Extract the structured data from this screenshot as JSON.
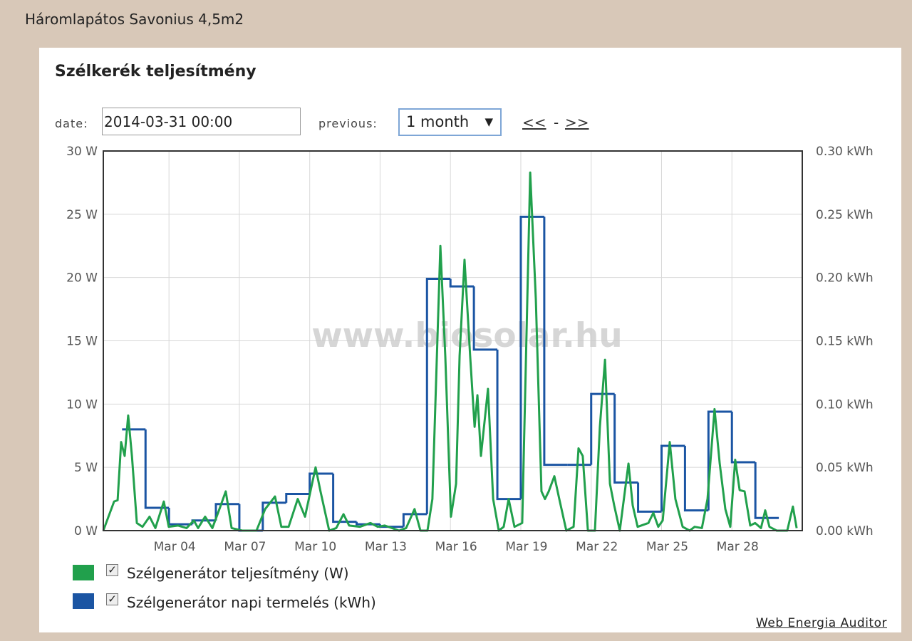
{
  "header": {
    "title": "Háromlapátos Savonius 4,5m2"
  },
  "panel": {
    "title": "Szélkerék teljesítmény",
    "date_label": "date:",
    "date_value": "2014-03-31 00:00",
    "previous_label": "previous:",
    "previous_value": "1 month",
    "prev_link": "<<",
    "separator": "-",
    "next_link": ">>",
    "footer_link": "Web Energia Auditor"
  },
  "chart_data": {
    "type": "line",
    "watermark": "www.biosolar.hu",
    "grid": true,
    "xlim": [
      1.2,
      31.0
    ],
    "xticks": [
      {
        "value": 4,
        "label": "Mar 04"
      },
      {
        "value": 7,
        "label": "Mar 07"
      },
      {
        "value": 10,
        "label": "Mar 10"
      },
      {
        "value": 13,
        "label": "Mar 13"
      },
      {
        "value": 16,
        "label": "Mar 16"
      },
      {
        "value": 19,
        "label": "Mar 19"
      },
      {
        "value": 22,
        "label": "Mar 22"
      },
      {
        "value": 25,
        "label": "Mar 25"
      },
      {
        "value": 28,
        "label": "Mar 28"
      }
    ],
    "ylim": [
      0,
      30
    ],
    "yticks": [
      {
        "value": 0,
        "label": "0 W"
      },
      {
        "value": 5,
        "label": "5 W"
      },
      {
        "value": 10,
        "label": "10 W"
      },
      {
        "value": 15,
        "label": "15 W"
      },
      {
        "value": 20,
        "label": "20 W"
      },
      {
        "value": 25,
        "label": "25 W"
      },
      {
        "value": 30,
        "label": "30 W"
      }
    ],
    "y2lim": [
      0,
      0.3
    ],
    "y2ticks": [
      {
        "value": 0,
        "label": "0.00 kWh"
      },
      {
        "value": 0.05,
        "label": "0.05 kWh"
      },
      {
        "value": 0.1,
        "label": "0.10 kWh"
      },
      {
        "value": 0.15,
        "label": "0.15 kWh"
      },
      {
        "value": 0.2,
        "label": "0.20 kWh"
      },
      {
        "value": 0.25,
        "label": "0.25 kWh"
      },
      {
        "value": 0.3,
        "label": "0.30 kWh"
      }
    ],
    "series": [
      {
        "name": "Szélgenerátor teljesítmény (W)",
        "color": "#21a04c",
        "x": [
          1.2,
          1.66,
          1.81,
          1.96,
          2.11,
          2.26,
          2.42,
          2.63,
          2.87,
          3.17,
          3.42,
          3.78,
          3.99,
          4.39,
          4.75,
          5.06,
          5.24,
          5.54,
          5.85,
          6.15,
          6.42,
          6.67,
          7.12,
          7.73,
          8.1,
          8.52,
          8.79,
          9.1,
          9.49,
          9.8,
          10.25,
          10.46,
          10.83,
          11.13,
          11.44,
          11.68,
          12.14,
          12.59,
          12.9,
          13.2,
          13.81,
          14.11,
          14.47,
          14.72,
          15.02,
          15.23,
          15.57,
          15.78,
          16.02,
          16.24,
          16.39,
          16.6,
          16.84,
          17.03,
          17.15,
          17.3,
          17.6,
          17.82,
          18.06,
          18.27,
          18.48,
          18.73,
          19.06,
          19.4,
          19.64,
          19.88,
          20.03,
          20.19,
          20.43,
          20.64,
          20.94,
          21.25,
          21.46,
          21.64,
          21.86,
          22.16,
          22.37,
          22.59,
          22.8,
          22.98,
          23.22,
          23.59,
          23.77,
          23.98,
          24.44,
          24.65,
          24.86,
          25.05,
          25.35,
          25.59,
          25.9,
          26.2,
          26.41,
          26.72,
          26.96,
          27.26,
          27.48,
          27.72,
          27.93,
          28.14,
          28.33,
          28.54,
          28.78,
          28.99,
          29.24,
          29.42,
          29.6,
          29.91,
          30.36,
          30.6,
          30.76
        ],
        "values": [
          0,
          2.3,
          2.4,
          7.0,
          5.9,
          9.1,
          5.9,
          0.6,
          0.3,
          1.1,
          0.2,
          2.3,
          0.3,
          0.4,
          0.2,
          0.8,
          0.2,
          1.1,
          0.2,
          1.7,
          3.1,
          0.2,
          0,
          0,
          1.7,
          2.7,
          0.3,
          0.3,
          2.5,
          1.1,
          5.0,
          3.1,
          0,
          0.2,
          1.3,
          0.4,
          0.3,
          0.6,
          0.3,
          0.4,
          0,
          0.2,
          1.7,
          0,
          0,
          2.5,
          22.5,
          13.8,
          1.1,
          3.7,
          13.8,
          21.4,
          13.8,
          8.2,
          10.7,
          5.9,
          11.2,
          2.5,
          0,
          0.3,
          2.5,
          0.3,
          0.6,
          28.3,
          18.3,
          3.1,
          2.5,
          3.1,
          4.3,
          2.5,
          0,
          0.3,
          6.5,
          5.9,
          0,
          0,
          8.2,
          13.5,
          3.7,
          2.0,
          0,
          5.3,
          2.0,
          0.3,
          0.6,
          1.4,
          0.3,
          0.8,
          7.0,
          2.5,
          0.3,
          0,
          0.3,
          0.2,
          2.5,
          9.6,
          5.3,
          1.7,
          0.3,
          5.6,
          3.2,
          3.1,
          0.4,
          0.6,
          0.2,
          1.6,
          0.3,
          0,
          0,
          1.9,
          0.2
        ]
      },
      {
        "name": "Szélgenerátor napi termelés (kWh)",
        "color": "#1b55a3",
        "axis": "y2",
        "step": true,
        "x": [
          2,
          3,
          4,
          5,
          6,
          7,
          8,
          9,
          10,
          11,
          12,
          13,
          14,
          15,
          16,
          17,
          18,
          19,
          20,
          21,
          22,
          23,
          24,
          25,
          26,
          27,
          28,
          29
        ],
        "values": [
          0.08,
          0.018,
          0.005,
          0.008,
          0.021,
          0,
          0.022,
          0.029,
          0.045,
          0.007,
          0.005,
          0.003,
          0.013,
          0.199,
          0.193,
          0.143,
          0.025,
          0.248,
          0.052,
          0.052,
          0.108,
          0.038,
          0.015,
          0.067,
          0.016,
          0.094,
          0.054,
          0.01
        ]
      }
    ]
  }
}
